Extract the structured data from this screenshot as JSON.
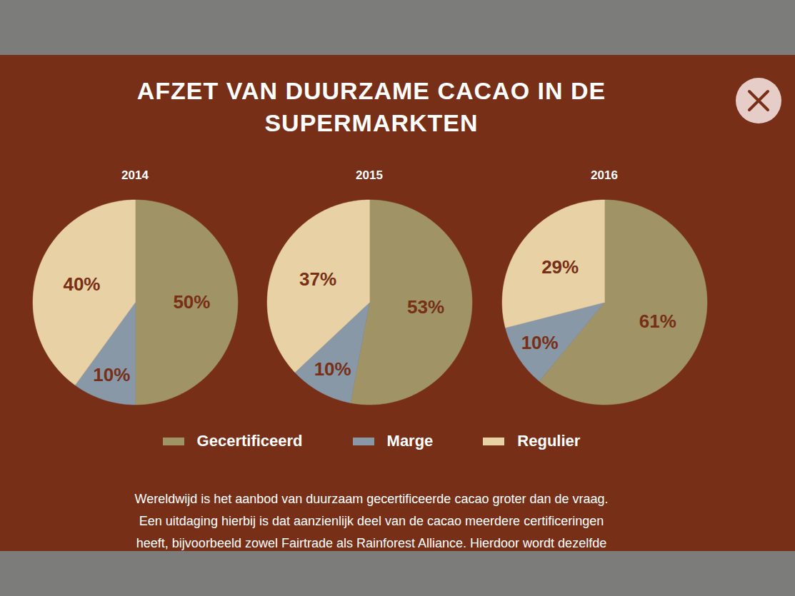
{
  "title": "AFZET VAN DUURZAME CACAO IN DE SUPERMARKTEN",
  "caption": [
    "Wereldwijd is het aanbod van duurzaam gecertificeerde cacao groter dan de vraag.",
    "Een uitdaging hierbij is dat aanzienlijk deel van de cacao meerdere certificeringen",
    "heeft, bijvoorbeeld zowel Fairtrade als Rainforest Alliance. Hierdoor wordt dezelfde"
  ],
  "chart_data": [
    {
      "type": "pie",
      "title": "2014",
      "categories": [
        "Gecertificeerd",
        "Marge",
        "Regulier"
      ],
      "values": [
        50,
        10,
        40
      ],
      "value_labels": [
        "50%",
        "10%",
        "40%"
      ],
      "colors": [
        "#a09466",
        "#8898a6",
        "#e8d1a4"
      ],
      "data_labels": true,
      "legend": "bottom"
    },
    {
      "type": "pie",
      "title": "2015",
      "categories": [
        "Gecertificeerd",
        "Marge",
        "Regulier"
      ],
      "values": [
        53,
        10,
        37
      ],
      "value_labels": [
        "53%",
        "10%",
        "37%"
      ],
      "colors": [
        "#a09466",
        "#8898a6",
        "#e8d1a4"
      ],
      "data_labels": true,
      "legend": "bottom"
    },
    {
      "type": "pie",
      "title": "2016",
      "categories": [
        "Gecertificeerd",
        "Marge",
        "Regulier"
      ],
      "values": [
        61,
        10,
        29
      ],
      "value_labels": [
        "61%",
        "10%",
        "29%"
      ],
      "colors": [
        "#a09466",
        "#8898a6",
        "#e8d1a4"
      ],
      "data_labels": true,
      "legend": "bottom"
    }
  ]
}
